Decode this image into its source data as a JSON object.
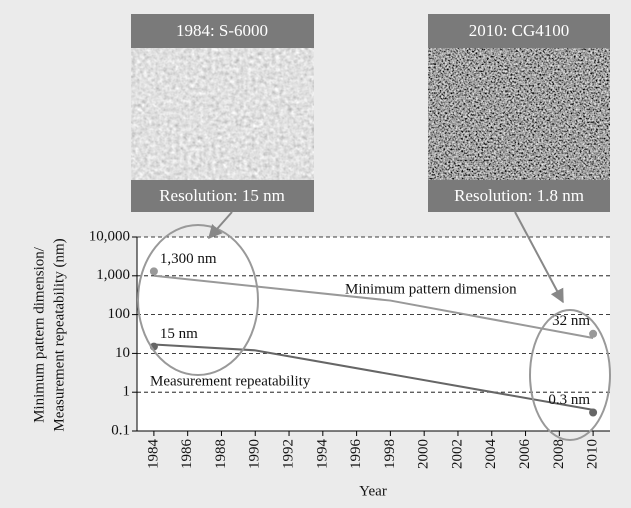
{
  "chart_data": {
    "type": "line",
    "images": [
      {
        "title": "1984: S-6000",
        "caption": "Resolution: 15 nm"
      },
      {
        "title": "2010: CG4100",
        "caption": "Resolution: 1.8 nm"
      }
    ],
    "y_label_lines": [
      "Minimum pattern dimension/",
      "Measurement repeatability (nm)"
    ],
    "x_label": "Year",
    "log_y": true,
    "grid": true,
    "xlim": [
      1983,
      2011
    ],
    "xticks": [
      1984,
      1986,
      1988,
      1990,
      1992,
      1994,
      1996,
      1998,
      2000,
      2002,
      2004,
      2006,
      2008,
      2010
    ],
    "ylim": [
      0.1,
      10000
    ],
    "yticks": [
      0.1,
      1,
      10,
      100,
      {
        "value": 1000,
        "label": "1,000"
      },
      {
        "value": 10000,
        "label": "10,000"
      }
    ],
    "series": [
      {
        "name": "Minimum pattern dimension",
        "color": "#999999",
        "x": [
          1984,
          1998,
          2010
        ],
        "values": [
          1000,
          230,
          25
        ],
        "points": {
          "x": [
            1984,
            2010
          ],
          "values": [
            1300,
            32
          ],
          "value_labels": [
            "1,300 nm",
            "32 nm"
          ]
        }
      },
      {
        "name": "Measurement repeatability",
        "color": "#666666",
        "x": [
          1984,
          1990,
          2010
        ],
        "values": [
          17,
          12,
          0.35
        ],
        "points": {
          "x": [
            1984,
            2010
          ],
          "values": [
            15,
            0.3
          ],
          "value_labels": [
            "15 nm",
            "0.3 nm"
          ]
        }
      }
    ]
  }
}
